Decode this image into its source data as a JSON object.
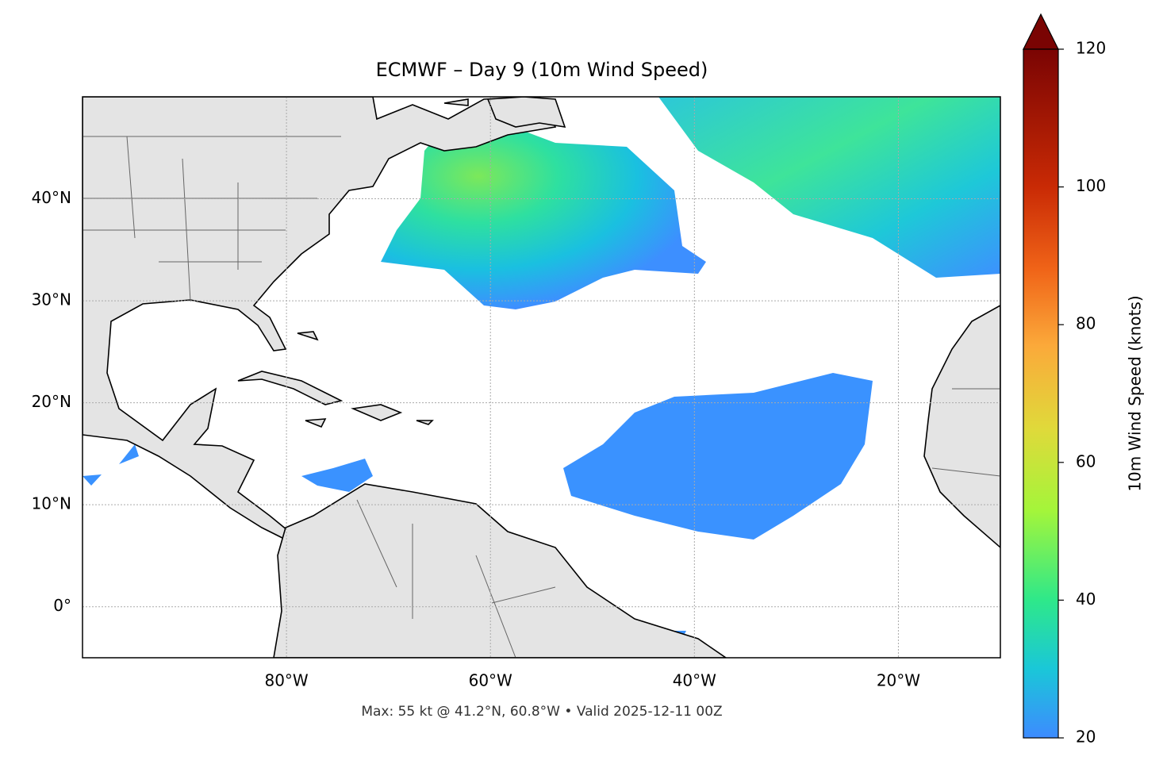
{
  "chart_data": {
    "type": "map",
    "title": "ECMWF – Day 9 (10m Wind Speed)",
    "footer": "Max: 55 kt @ 41.2°N, 60.8°W • Valid 2025-12-11 00Z",
    "xlim": [
      -100,
      -10
    ],
    "ylim": [
      -5,
      50
    ],
    "xticks": [
      {
        "value": -80,
        "label": "80°W"
      },
      {
        "value": -60,
        "label": "60°W"
      },
      {
        "value": -40,
        "label": "40°W"
      },
      {
        "value": -20,
        "label": "20°W"
      }
    ],
    "yticks": [
      {
        "value": 0,
        "label": "0°"
      },
      {
        "value": 10,
        "label": "10°N"
      },
      {
        "value": 20,
        "label": "20°N"
      },
      {
        "value": 30,
        "label": "30°N"
      },
      {
        "value": 40,
        "label": "40°N"
      }
    ],
    "grid": true,
    "colorbar": {
      "label": "10m Wind Speed (knots)",
      "lim": [
        20,
        120
      ],
      "ticks": [
        20,
        40,
        60,
        80,
        100,
        120
      ]
    }
  }
}
